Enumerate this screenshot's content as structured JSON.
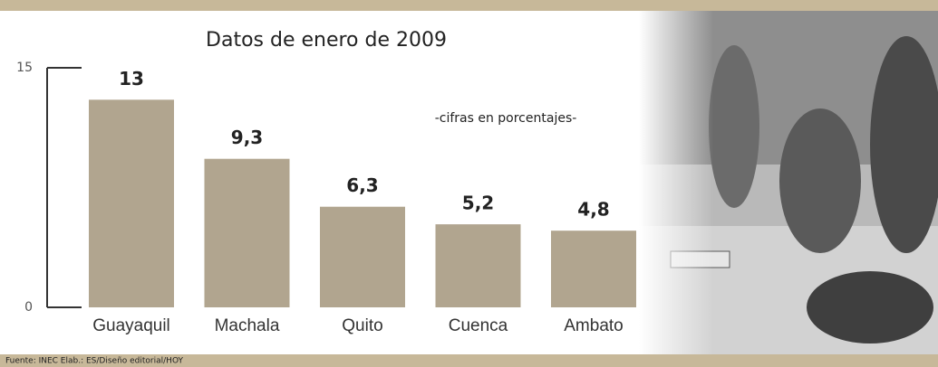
{
  "chart_data": {
    "type": "bar",
    "title": "Datos de enero de 2009",
    "annotation": "-cifras en porcentajes-",
    "source": "Fuente: INEC  Elab.: ES/Diseño editorial/HOY",
    "categories": [
      "Guayaquil",
      "Machala",
      "Quito",
      "Cuenca",
      "Ambato"
    ],
    "values": [
      13,
      9.3,
      6.3,
      5.2,
      4.8
    ],
    "value_labels": [
      "13",
      "9,3",
      "6,3",
      "5,2",
      "4,8"
    ],
    "color": "#b1a58f",
    "ylim": [
      0,
      15
    ],
    "yticks": [
      0,
      15
    ]
  }
}
